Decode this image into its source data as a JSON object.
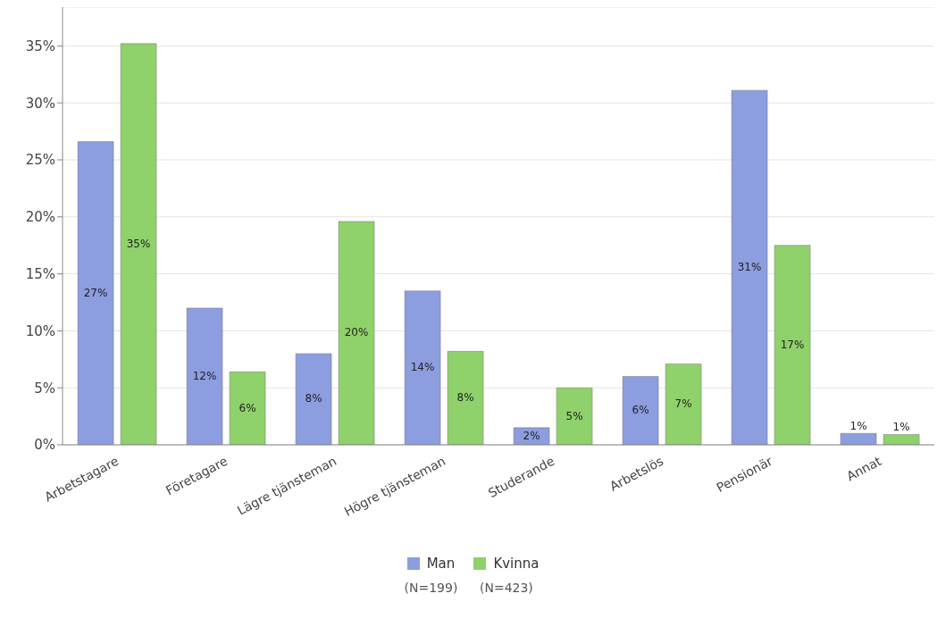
{
  "chart_data": {
    "type": "bar",
    "categories": [
      "Arbetstagare",
      "Företagare",
      "Lägre tjänsteman",
      "Högre tjänsteman",
      "Studerande",
      "Arbetslös",
      "Pensionär",
      "Annat"
    ],
    "series": [
      {
        "name": "Man",
        "color": "#8c9de0",
        "values": [
          26.6,
          12.0,
          8.0,
          13.5,
          1.5,
          6.0,
          31.1,
          1.0
        ],
        "value_labels": [
          "27%",
          "12%",
          "8%",
          "14%",
          "2%",
          "6%",
          "31%",
          "1%"
        ]
      },
      {
        "name": "Kvinna",
        "color": "#8fd16a",
        "values": [
          35.2,
          6.4,
          19.6,
          8.2,
          5.0,
          7.1,
          17.5,
          0.9
        ],
        "value_labels": [
          "35%",
          "6%",
          "20%",
          "8%",
          "5%",
          "7%",
          "17%",
          "1%"
        ]
      }
    ],
    "ylim": [
      0,
      38.4
    ],
    "yticks": [
      {
        "value": 0,
        "label": "0%"
      },
      {
        "value": 5,
        "label": "5%"
      },
      {
        "value": 10,
        "label": "10%"
      },
      {
        "value": 15,
        "label": "15%"
      },
      {
        "value": 20,
        "label": "20%"
      },
      {
        "value": 25,
        "label": "25%"
      },
      {
        "value": 30,
        "label": "30%"
      },
      {
        "value": 35,
        "label": "35%"
      }
    ],
    "grid": "y",
    "legend": "bottom",
    "annotations": [
      "(N=199)",
      "(N=423)"
    ]
  }
}
